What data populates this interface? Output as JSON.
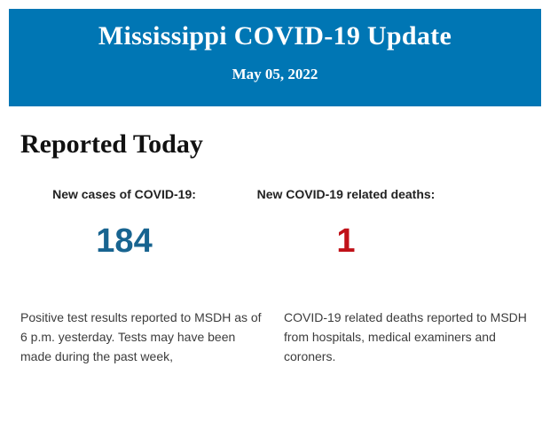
{
  "banner": {
    "title": "Mississippi COVID-19 Update",
    "date": "May 05, 2022",
    "background_color": "#0076b4",
    "text_color": "#ffffff"
  },
  "section": {
    "heading": "Reported Today"
  },
  "stats": [
    {
      "label": "New cases of COVID-19:",
      "value": "184",
      "value_color": "#186490",
      "description": "Positive test results reported to MSDH as of 6 p.m. yesterday. Tests may have been made during the past week,"
    },
    {
      "label": "New COVID-19 related deaths:",
      "value": "1",
      "value_color": "#c01118",
      "description": "COVID-19 related deaths reported to MSDH from hospitals, medical examiners and coroners."
    }
  ]
}
